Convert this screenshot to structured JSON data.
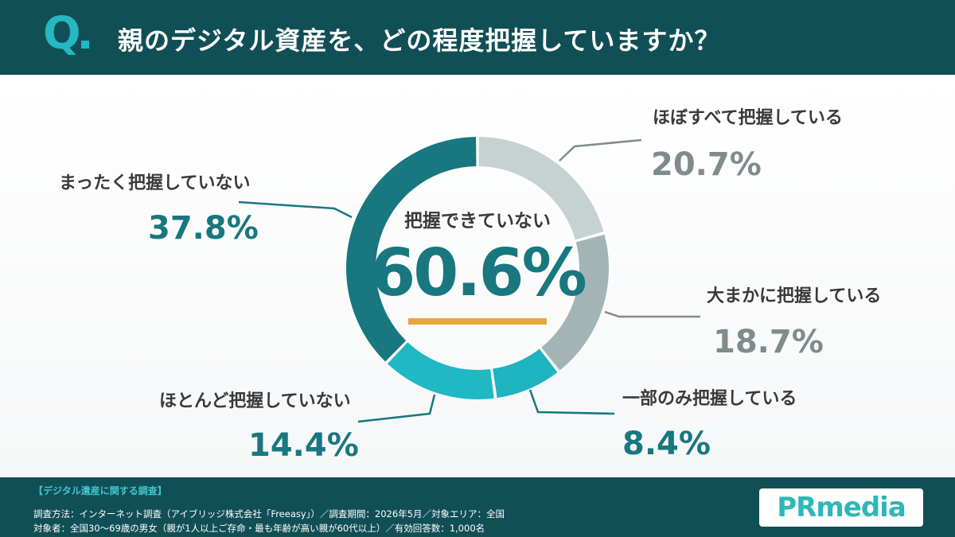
{
  "header": {
    "q_mark": "Q",
    "title": "親のデジタル資産を、どの程度把握していますか？"
  },
  "chart_data": {
    "type": "pie",
    "donut": true,
    "categories": [
      "ほぼすべて把握している",
      "大まかに把握している",
      "一部のみ把握している",
      "ほとんど把握していない",
      "まったく把握していない"
    ],
    "values": [
      20.7,
      18.7,
      8.4,
      14.4,
      37.8
    ],
    "value_labels": [
      "20.7%",
      "18.7%",
      "8.4%",
      "14.4%",
      "37.8%"
    ],
    "colors": [
      "#c5d2d1",
      "#a3b4b5",
      "#1db3bf",
      "#1fb8c3",
      "#18777f"
    ],
    "label_colors": [
      "#808b8c",
      "#808b8c",
      "#18777f",
      "#18777f",
      "#18777f"
    ],
    "center": {
      "label": "把握できていない",
      "value": "60.6%",
      "underline_color": "#e8a640"
    }
  },
  "footer": {
    "title": "【デジタル遺産に関する調査】",
    "line1": "調査方法：インターネット調査（アイブリッジ株式会社「Freeasy」）／調査期間：2026年5月／対象エリア：全国",
    "line2": "対象者：全国30～69歳の男女（親が1人以上ご存命・最も年齢が高い親が60代以上）／有効回答数：1,000名",
    "logo": "PRmedia"
  }
}
